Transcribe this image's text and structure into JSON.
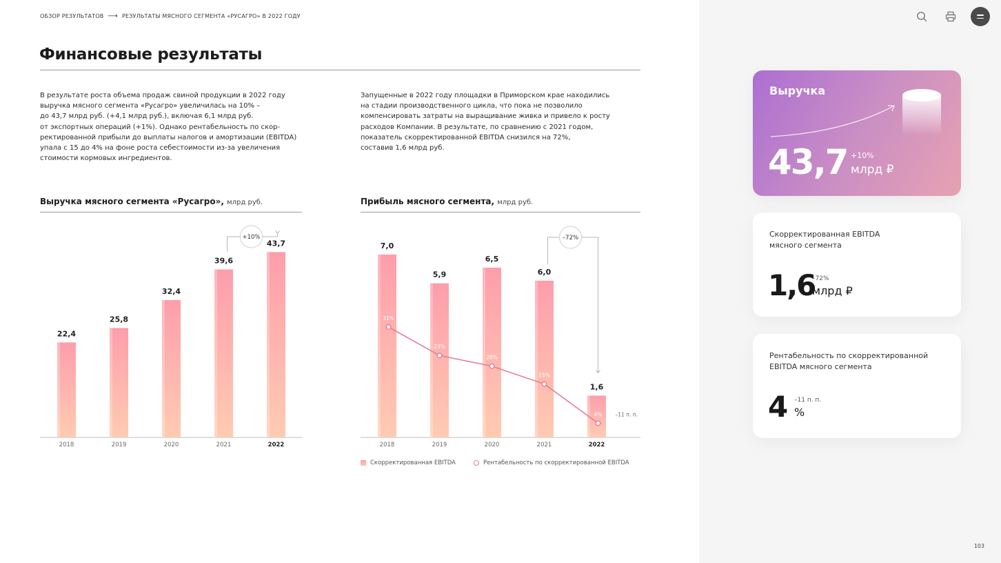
{
  "breadcrumb": {
    "item1": "Обзор результатов",
    "item2": "Результаты мясного сегмента «Русагро» в 2022 году"
  },
  "page_title": "Финансовые результаты",
  "paragraph1": "В результате роста объема продаж свиной продукции в 2022 году\nвыручка мясного сегмента «Русагро» увеличилась на 10% –\nдо 43,7 млрд руб. (+4,1 млрд руб.), включая 6,1 млрд руб.\nот экспортных операций (+1%). Однако рентабельность по скор-\nректированной прибыли до выплаты налогов и амортизации (EBITDA)\nупала с 15 до 4% на фоне роста себестоимости из-за увеличения\nстоимости кормовых ингредиентов.",
  "paragraph2": "Запущенные в 2022 году площадки в Приморском крае находились\nна стадии производственного цикла, что пока не позволило\nкомпенсировать затраты на выращивание живка и привело к росту\nрасходов Компании. В результате, по сравнению с 2021 годом,\nпоказатель скорректированной EBITDA снизился на 72%,\nсоставив 1,6 млрд руб.",
  "chart_data": [
    {
      "type": "bar",
      "title": "Выручка мясного сегмента «Русагро»,",
      "unit": "млрд руб.",
      "categories": [
        "2018",
        "2019",
        "2020",
        "2021",
        "2022"
      ],
      "values": [
        22.4,
        25.8,
        32.4,
        39.6,
        43.7
      ],
      "value_labels": [
        "22,4",
        "25,8",
        "32,4",
        "39,6",
        "43,7"
      ],
      "annotation": "+10%",
      "ylim": [
        0,
        50
      ],
      "colors": {
        "bar_top": "#fd9eab",
        "bar_bottom": "#ffcbb2"
      }
    },
    {
      "type": "bar",
      "title": "Прибыль мясного сегмента,",
      "unit": "млрд руб.",
      "categories": [
        "2018",
        "2019",
        "2020",
        "2021",
        "2022"
      ],
      "series": [
        {
          "name": "Скорректированная EBITDA",
          "type": "bar",
          "values": [
            7.0,
            5.9,
            6.5,
            6.0,
            1.6
          ],
          "value_labels": [
            "7,0",
            "5,9",
            "6,5",
            "6,0",
            "1,6"
          ]
        },
        {
          "name": "Рентабельность по скорректированной EBITDA",
          "type": "line",
          "values": [
            31,
            23,
            20,
            15,
            4
          ],
          "value_labels": [
            "31%",
            "23%",
            "20%",
            "15%",
            "4%"
          ]
        }
      ],
      "annotation": "–72%",
      "side_annotation": "–11 п. п.",
      "ylim": [
        0,
        7.5
      ],
      "line_ylim": [
        0,
        55
      ],
      "colors": {
        "bar_top": "#fd9eab",
        "bar_bottom": "#ffcbb2",
        "line": "#e37d96"
      }
    }
  ],
  "legend": {
    "item1": "Скорректированная EBITDA",
    "item2": "Рентабельность по скорректированной EBITDA"
  },
  "icons": {
    "search": "search-icon",
    "print": "print-icon",
    "menu": "menu-icon"
  },
  "cards": {
    "revenue": {
      "label": "Выручка",
      "value": "43,7",
      "change": "+10%",
      "unit": "млрд ₽"
    },
    "ebitda": {
      "label": "Скорректированная EBITDA\nмясного сегмента",
      "value": "1,6",
      "change": "–72%",
      "unit": "млрд ₽"
    },
    "margin": {
      "label": "Рентабельность по скорректированной\nEBITDA мясного сегмента",
      "value": "4",
      "change": "–11 п. п.",
      "unit": "%"
    }
  },
  "page_number": "103"
}
